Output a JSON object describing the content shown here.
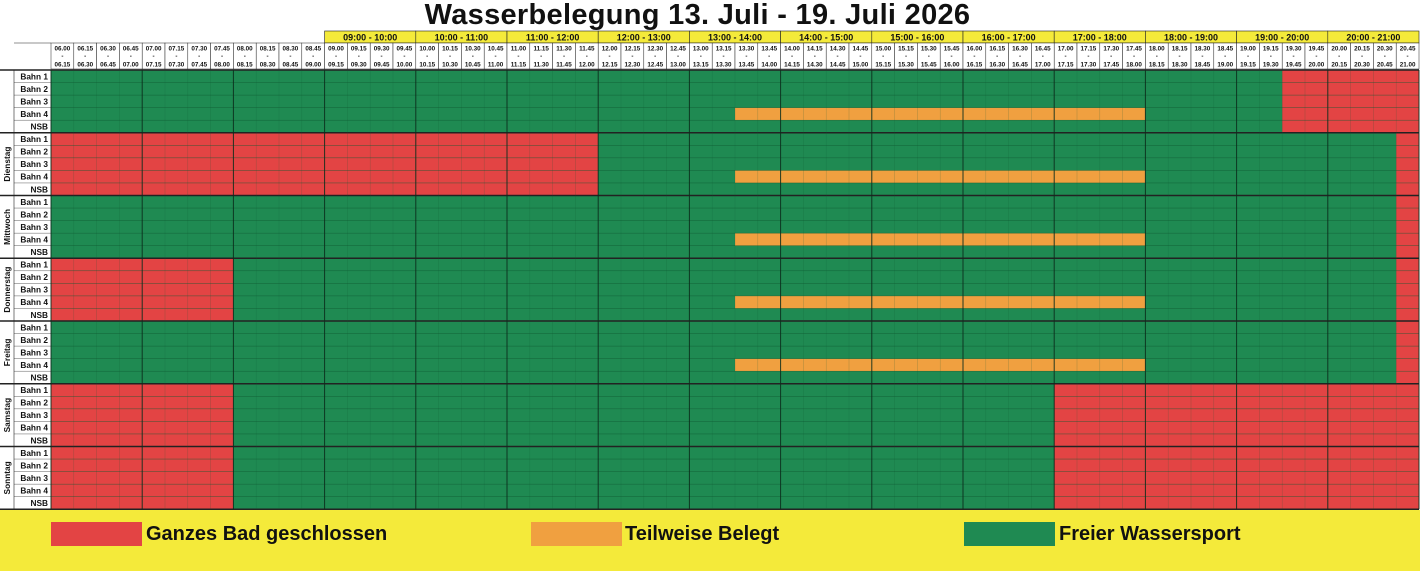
{
  "title": "Wasserbelegung 13. Juli - 19. Juli 2026",
  "colors": {
    "closed": "#e34444",
    "partial": "#f0a040",
    "free": "#1f8a52",
    "header_yellow": "#f4ea3a",
    "grid_line": "#0f5a32"
  },
  "hour_headers": [
    "09:00 - 10:00",
    "10:00 - 11:00",
    "11:00 - 12:00",
    "12:00 - 13:00",
    "13:00 - 14:00",
    "14:00 - 15:00",
    "15:00 - 16:00",
    "16:00 - 17:00",
    "17:00 - 18:00",
    "18:00 - 19:00",
    "19:00 - 20:00",
    "20:00 - 21:00"
  ],
  "slots": [
    {
      "start": "06.00",
      "end": "06.15"
    },
    {
      "start": "06.15",
      "end": "06.30"
    },
    {
      "start": "06.30",
      "end": "06.45"
    },
    {
      "start": "06.45",
      "end": "07.00"
    },
    {
      "start": "07.00",
      "end": "07.15"
    },
    {
      "start": "07.15",
      "end": "07.30"
    },
    {
      "start": "07.30",
      "end": "07.45"
    },
    {
      "start": "07.45",
      "end": "08.00"
    },
    {
      "start": "08.00",
      "end": "08.15"
    },
    {
      "start": "08.15",
      "end": "08.30"
    },
    {
      "start": "08.30",
      "end": "08.45"
    },
    {
      "start": "08.45",
      "end": "09.00"
    },
    {
      "start": "09.00",
      "end": "09.15"
    },
    {
      "start": "09.15",
      "end": "09.30"
    },
    {
      "start": "09.30",
      "end": "09.45"
    },
    {
      "start": "09.45",
      "end": "10.00"
    },
    {
      "start": "10.00",
      "end": "10.15"
    },
    {
      "start": "10.15",
      "end": "10.30"
    },
    {
      "start": "10.30",
      "end": "10.45"
    },
    {
      "start": "10.45",
      "end": "11.00"
    },
    {
      "start": "11.00",
      "end": "11.15"
    },
    {
      "start": "11.15",
      "end": "11.30"
    },
    {
      "start": "11.30",
      "end": "11.45"
    },
    {
      "start": "11.45",
      "end": "12.00"
    },
    {
      "start": "12.00",
      "end": "12.15"
    },
    {
      "start": "12.15",
      "end": "12.30"
    },
    {
      "start": "12.30",
      "end": "12.45"
    },
    {
      "start": "12.45",
      "end": "13.00"
    },
    {
      "start": "13.00",
      "end": "13.15"
    },
    {
      "start": "13.15",
      "end": "13.30"
    },
    {
      "start": "13.30",
      "end": "13.45"
    },
    {
      "start": "13.45",
      "end": "14.00"
    },
    {
      "start": "14.00",
      "end": "14.15"
    },
    {
      "start": "14.15",
      "end": "14.30"
    },
    {
      "start": "14.30",
      "end": "14.45"
    },
    {
      "start": "14.45",
      "end": "15.00"
    },
    {
      "start": "15.00",
      "end": "15.15"
    },
    {
      "start": "15.15",
      "end": "15.30"
    },
    {
      "start": "15.30",
      "end": "15.45"
    },
    {
      "start": "15.45",
      "end": "16.00"
    },
    {
      "start": "16.00",
      "end": "16.15"
    },
    {
      "start": "16.15",
      "end": "16.30"
    },
    {
      "start": "16.30",
      "end": "16.45"
    },
    {
      "start": "16.45",
      "end": "17.00"
    },
    {
      "start": "17.00",
      "end": "17.15"
    },
    {
      "start": "17.15",
      "end": "17.30"
    },
    {
      "start": "17.30",
      "end": "17.45"
    },
    {
      "start": "17.45",
      "end": "18.00"
    },
    {
      "start": "18.00",
      "end": "18.15"
    },
    {
      "start": "18.15",
      "end": "18.30"
    },
    {
      "start": "18.30",
      "end": "18.45"
    },
    {
      "start": "18.45",
      "end": "19.00"
    },
    {
      "start": "19.00",
      "end": "19.15"
    },
    {
      "start": "19.15",
      "end": "19.30"
    },
    {
      "start": "19.30",
      "end": "19.45"
    },
    {
      "start": "19.45",
      "end": "20.00"
    },
    {
      "start": "20.00",
      "end": "20.15"
    },
    {
      "start": "20.15",
      "end": "20.30"
    },
    {
      "start": "20.30",
      "end": "20.45"
    },
    {
      "start": "20.45",
      "end": "21.00"
    }
  ],
  "lanes": [
    "Bahn 1",
    "Bahn 2",
    "Bahn 3",
    "Bahn 4",
    "NSB"
  ],
  "days": [
    {
      "label": "",
      "blocks": [
        {
          "status": "closed",
          "lanes": [
            0,
            4
          ],
          "from": "19.30",
          "to": "21.00"
        },
        {
          "status": "partial",
          "lanes": [
            3,
            3
          ],
          "from": "13.30",
          "to": "18.00"
        }
      ]
    },
    {
      "label": "Dienstag",
      "blocks": [
        {
          "status": "closed",
          "lanes": [
            0,
            4
          ],
          "from": "06.00",
          "to": "12.00"
        },
        {
          "status": "partial",
          "lanes": [
            3,
            3
          ],
          "from": "13.30",
          "to": "18.00"
        },
        {
          "status": "closed",
          "lanes": [
            0,
            4
          ],
          "from": "20.45",
          "to": "21.00"
        }
      ]
    },
    {
      "label": "Mittwoch",
      "blocks": [
        {
          "status": "partial",
          "lanes": [
            3,
            3
          ],
          "from": "13.30",
          "to": "18.00"
        },
        {
          "status": "closed",
          "lanes": [
            0,
            4
          ],
          "from": "20.45",
          "to": "21.00"
        }
      ]
    },
    {
      "label": "Donnerstag",
      "blocks": [
        {
          "status": "closed",
          "lanes": [
            0,
            4
          ],
          "from": "06.00",
          "to": "08.00"
        },
        {
          "status": "partial",
          "lanes": [
            3,
            3
          ],
          "from": "13.30",
          "to": "18.00"
        },
        {
          "status": "closed",
          "lanes": [
            0,
            4
          ],
          "from": "20.45",
          "to": "21.00"
        }
      ]
    },
    {
      "label": "Freitag",
      "blocks": [
        {
          "status": "partial",
          "lanes": [
            3,
            3
          ],
          "from": "13.30",
          "to": "18.00"
        },
        {
          "status": "closed",
          "lanes": [
            0,
            4
          ],
          "from": "20.45",
          "to": "21.00"
        }
      ]
    },
    {
      "label": "Samstag",
      "blocks": [
        {
          "status": "closed",
          "lanes": [
            0,
            4
          ],
          "from": "06.00",
          "to": "08.00"
        },
        {
          "status": "closed",
          "lanes": [
            0,
            4
          ],
          "from": "17.00",
          "to": "21.00"
        }
      ]
    },
    {
      "label": "Sonntag",
      "blocks": [
        {
          "status": "closed",
          "lanes": [
            0,
            4
          ],
          "from": "06.00",
          "to": "08.00"
        },
        {
          "status": "closed",
          "lanes": [
            0,
            4
          ],
          "from": "17.00",
          "to": "21.00"
        }
      ]
    }
  ],
  "legend": [
    {
      "status": "closed",
      "label": "Ganzes Bad geschlossen"
    },
    {
      "status": "partial",
      "label": "Teilweise Belegt"
    },
    {
      "status": "free",
      "label": "Freier Wassersport"
    }
  ]
}
